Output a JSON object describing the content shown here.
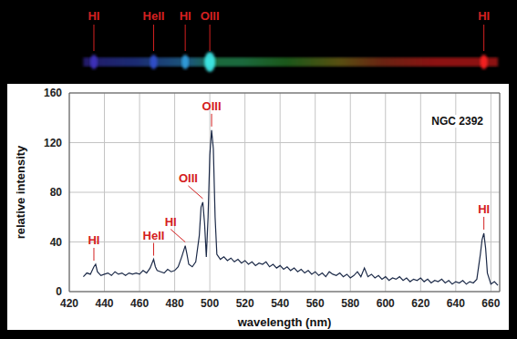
{
  "spectrum_labels": [
    {
      "text": "HI",
      "x": 434
    },
    {
      "text": "HeII",
      "x": 468
    },
    {
      "text": "HI",
      "x": 486
    },
    {
      "text": "OIII",
      "x": 500
    },
    {
      "text": "HI",
      "x": 656
    }
  ],
  "chart_data": {
    "type": "line",
    "title": "NGC 2392",
    "x_label": "wavelength (nm)",
    "y_label": "relative intensity",
    "color": "#1c2a48",
    "grid": true,
    "xlim": [
      420,
      665
    ],
    "xticks": [
      420,
      440,
      460,
      480,
      500,
      520,
      540,
      560,
      580,
      600,
      620,
      640,
      660
    ],
    "ylim": [
      0,
      160
    ],
    "yticks": [
      0,
      40,
      80,
      120,
      160
    ],
    "x": [
      428,
      430,
      432,
      434,
      435,
      436,
      438,
      440,
      442,
      444,
      446,
      448,
      450,
      452,
      454,
      456,
      458,
      460,
      462,
      464,
      466,
      468,
      469,
      470,
      472,
      474,
      476,
      478,
      480,
      482,
      484,
      486,
      487,
      488,
      490,
      492,
      494,
      495,
      496,
      497,
      498,
      499,
      500,
      501,
      502,
      503,
      504,
      506,
      508,
      510,
      512,
      514,
      516,
      518,
      520,
      522,
      524,
      526,
      528,
      530,
      532,
      534,
      536,
      538,
      540,
      542,
      544,
      546,
      548,
      550,
      552,
      554,
      556,
      558,
      560,
      562,
      564,
      566,
      568,
      570,
      572,
      574,
      576,
      578,
      580,
      582,
      584,
      586,
      588,
      590,
      592,
      594,
      596,
      598,
      600,
      602,
      604,
      606,
      608,
      610,
      612,
      614,
      616,
      618,
      620,
      622,
      624,
      626,
      628,
      630,
      632,
      634,
      636,
      638,
      640,
      642,
      644,
      646,
      648,
      650,
      652,
      654,
      655,
      656,
      657,
      658,
      660,
      662,
      664
    ],
    "values": [
      12,
      15,
      14,
      20,
      22,
      16,
      13,
      14,
      15,
      13,
      16,
      14,
      15,
      13,
      15,
      14,
      15,
      14,
      17,
      15,
      19,
      26,
      20,
      17,
      16,
      15,
      18,
      16,
      17,
      20,
      28,
      37,
      30,
      22,
      20,
      24,
      45,
      68,
      72,
      55,
      28,
      60,
      110,
      130,
      115,
      60,
      30,
      26,
      28,
      25,
      27,
      24,
      26,
      23,
      25,
      22,
      24,
      21,
      23,
      22,
      24,
      20,
      22,
      19,
      21,
      18,
      20,
      17,
      19,
      16,
      18,
      15,
      17,
      14,
      16,
      13,
      15,
      12,
      16,
      14,
      13,
      15,
      12,
      14,
      11,
      13,
      16,
      12,
      19,
      12,
      14,
      11,
      13,
      10,
      12,
      9,
      11,
      10,
      12,
      9,
      11,
      8,
      10,
      9,
      11,
      8,
      10,
      7,
      9,
      8,
      10,
      7,
      9,
      6,
      8,
      7,
      9,
      6,
      8,
      7,
      10,
      30,
      42,
      47,
      35,
      15,
      6,
      8,
      5
    ],
    "annotations": [
      {
        "text": "HI",
        "x": 434,
        "y": 22
      },
      {
        "text": "HeII",
        "x": 468,
        "y": 26
      },
      {
        "text": "HI",
        "x": 486,
        "y": 37
      },
      {
        "text": "OIII",
        "x": 496,
        "y": 72
      },
      {
        "text": "OIII",
        "x": 501,
        "y": 130
      },
      {
        "text": "HI",
        "x": 656,
        "y": 47
      }
    ]
  }
}
